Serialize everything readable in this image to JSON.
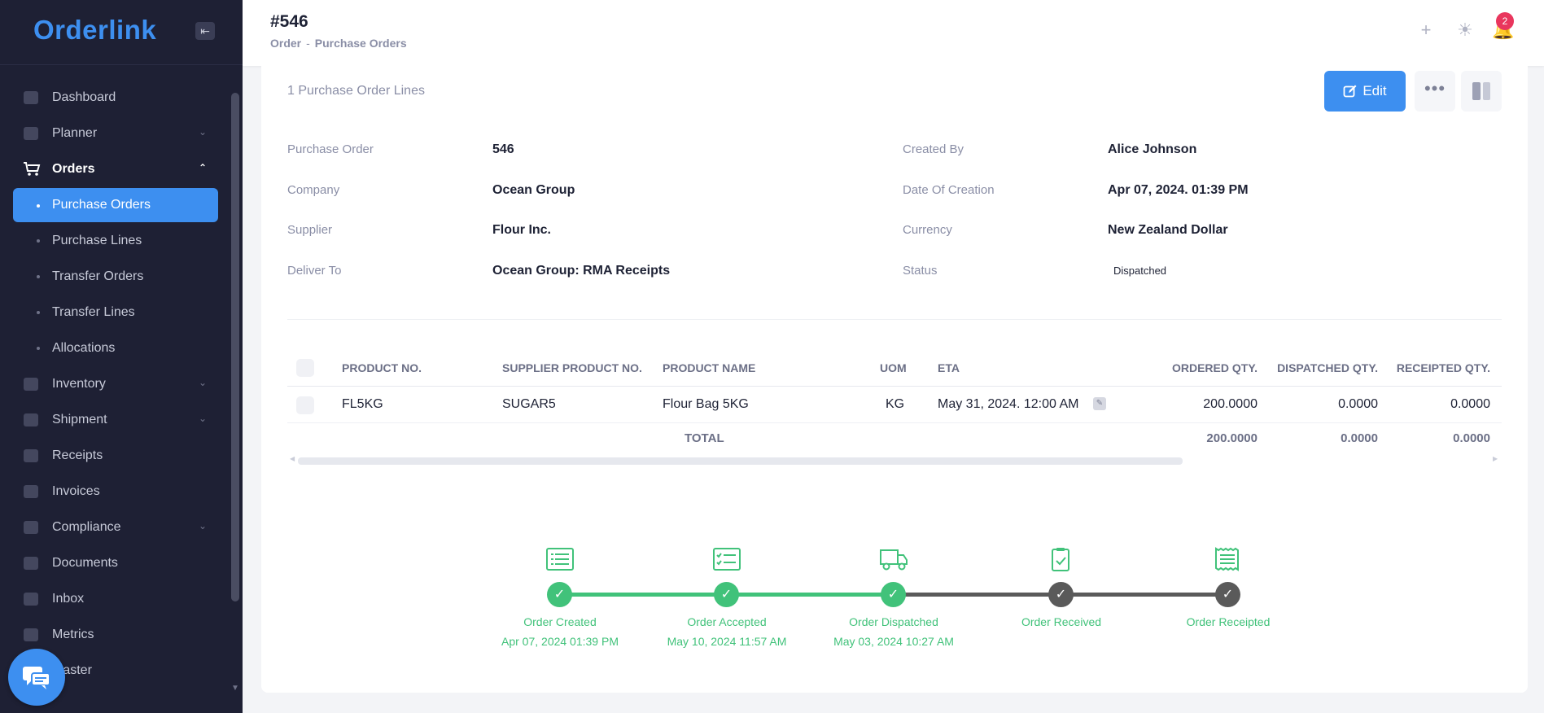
{
  "app": {
    "logo": "Orderlink"
  },
  "sidebar": {
    "items": [
      {
        "label": "Dashboard",
        "icon": "dashboard-icon"
      },
      {
        "label": "Planner",
        "icon": "planner-icon",
        "chevron": true
      },
      {
        "label": "Orders",
        "icon": "cart-icon",
        "chevron": true,
        "open": true
      },
      {
        "label": "Inventory",
        "icon": "inventory-icon",
        "chevron": true
      },
      {
        "label": "Shipment",
        "icon": "truck-icon",
        "chevron": true
      },
      {
        "label": "Receipts",
        "icon": "receipt-icon"
      },
      {
        "label": "Invoices",
        "icon": "invoice-icon"
      },
      {
        "label": "Compliance",
        "icon": "compliance-icon",
        "chevron": true
      },
      {
        "label": "Documents",
        "icon": "documents-icon"
      },
      {
        "label": "Inbox",
        "icon": "inbox-icon"
      },
      {
        "label": "Metrics",
        "icon": "metrics-icon"
      },
      {
        "label": "Master",
        "icon": "master-icon"
      }
    ],
    "orders_sub": [
      {
        "label": "Purchase Orders",
        "active": true
      },
      {
        "label": "Purchase Lines"
      },
      {
        "label": "Transfer Orders"
      },
      {
        "label": "Transfer Lines"
      },
      {
        "label": "Allocations"
      }
    ]
  },
  "header": {
    "title": "#546",
    "breadcrumb": [
      "Order",
      "-",
      "Purchase Orders"
    ],
    "notifications_count": "2"
  },
  "card": {
    "lines_count": "1 Purchase Order Lines",
    "edit_label": "Edit",
    "more_label": "•••"
  },
  "details": {
    "left": [
      {
        "label": "Purchase Order",
        "value": "546"
      },
      {
        "label": "Company",
        "value": "Ocean Group"
      },
      {
        "label": "Supplier",
        "value": "Flour Inc."
      },
      {
        "label": "Deliver To",
        "value": "Ocean Group: RMA Receipts"
      }
    ],
    "right": [
      {
        "label": "Created By",
        "value": "Alice Johnson"
      },
      {
        "label": "Date Of Creation",
        "value": "Apr 07, 2024. 01:39 PM"
      },
      {
        "label": "Currency",
        "value": "New Zealand Dollar"
      },
      {
        "label": "Status",
        "value": "Dispatched"
      }
    ]
  },
  "table": {
    "columns": [
      "PRODUCT NO.",
      "SUPPLIER PRODUCT NO.",
      "PRODUCT NAME",
      "UOM",
      "ETA",
      "ORDERED QTY.",
      "DISPATCHED QTY.",
      "RECEIPTED QTY."
    ],
    "rows": [
      {
        "product_no": "FL5KG",
        "supplier_no": "SUGAR5",
        "name": "Flour Bag 5KG",
        "uom": "KG",
        "eta": "May 31, 2024. 12:00 AM",
        "ordered": "200.0000",
        "dispatched": "0.0000",
        "receipted": "0.0000"
      }
    ],
    "total": {
      "label": "TOTAL",
      "ordered": "200.0000",
      "dispatched": "0.0000",
      "receipted": "0.0000"
    }
  },
  "timeline": {
    "colors": {
      "done": "#41c27a",
      "pending": "#5a5a5a"
    },
    "steps": [
      {
        "label": "Order Created",
        "date": "Apr 07, 2024 01:39 PM",
        "done": true,
        "icon": "list-icon"
      },
      {
        "label": "Order Accepted",
        "date": "May 10, 2024 11:57 AM",
        "done": true,
        "icon": "checklist-icon"
      },
      {
        "label": "Order Dispatched",
        "date": "May 03, 2024 10:27 AM",
        "done": true,
        "icon": "truck-icon"
      },
      {
        "label": "Order Received",
        "date": "",
        "done": false,
        "icon": "clipboard-check-icon"
      },
      {
        "label": "Order Receipted",
        "date": "",
        "done": false,
        "icon": "receipt-icon"
      }
    ]
  },
  "colors": {
    "accent": "#3d8ff0",
    "sidebar_bg": "#1e2034",
    "success": "#41c27a",
    "badge": "#e9365d"
  }
}
